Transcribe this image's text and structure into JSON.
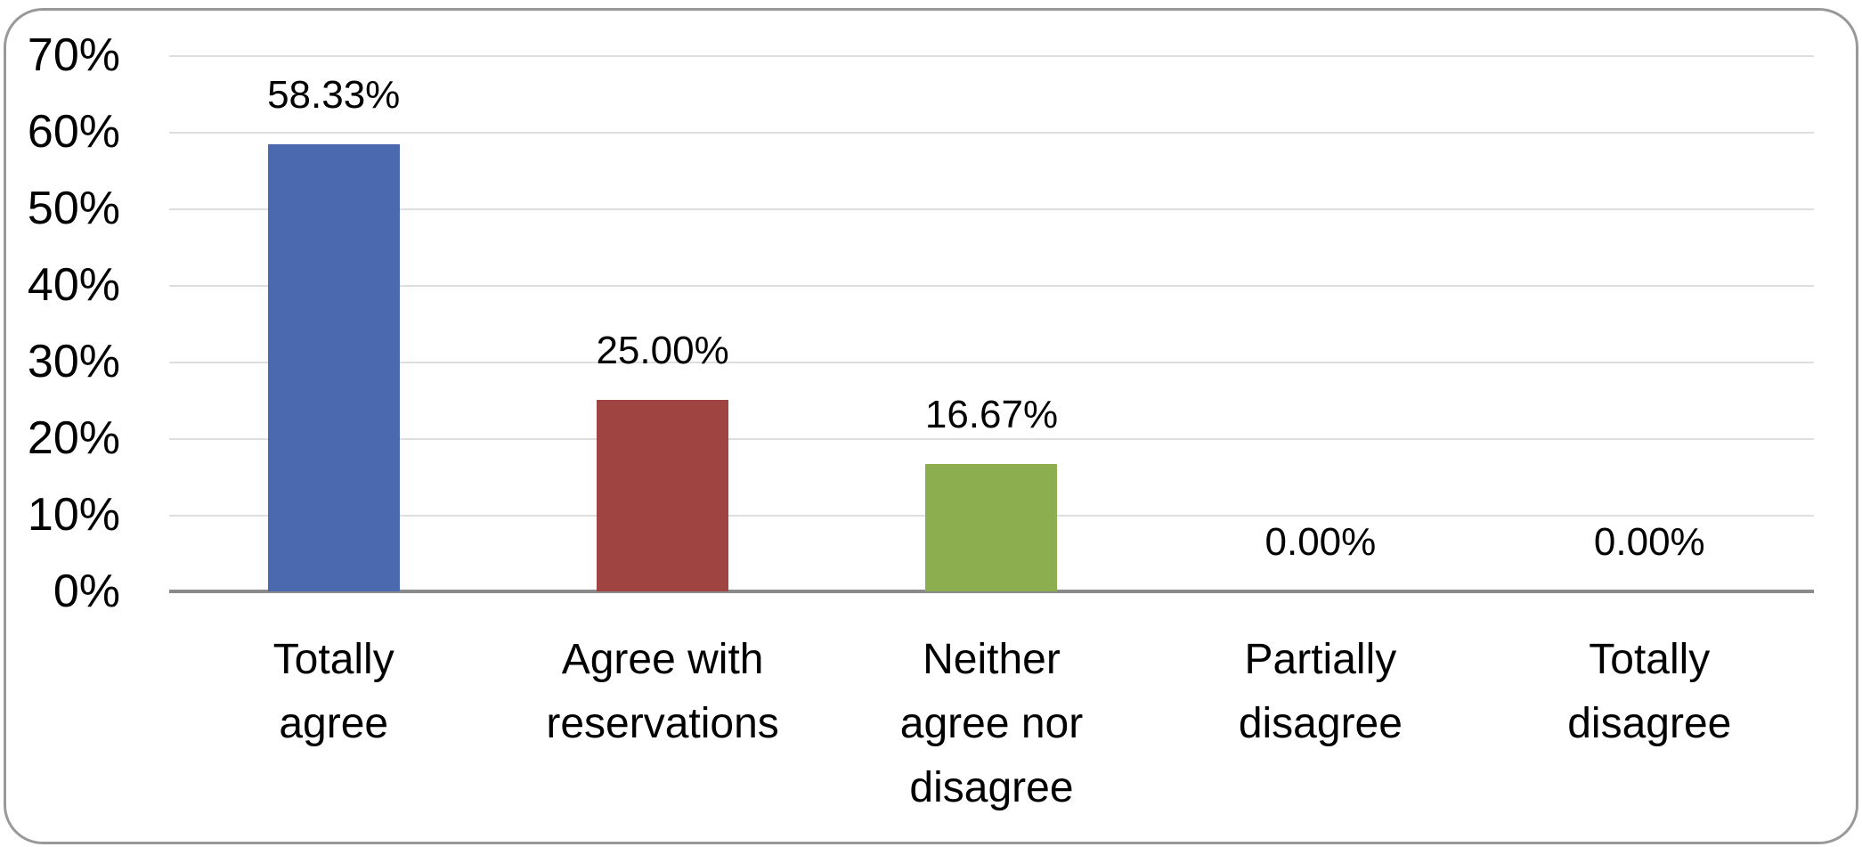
{
  "chart_data": {
    "type": "bar",
    "title": "",
    "xlabel": "",
    "ylabel": "",
    "ylim": [
      0,
      70
    ],
    "grid": true,
    "legend": false,
    "y_tick_labels": [
      "70%",
      "60%",
      "50%",
      "40%",
      "30%",
      "20%",
      "10%",
      "0%"
    ],
    "categories": [
      "Totally agree",
      "Agree with reservations",
      "Neither agree nor disagree",
      "Partially disagree",
      "Totally disagree"
    ],
    "category_label_lines": [
      [
        "Totally",
        "agree"
      ],
      [
        "Agree with",
        "reservations"
      ],
      [
        "Neither",
        "agree nor",
        "disagree"
      ],
      [
        "Partially",
        "disagree"
      ],
      [
        "Totally",
        "disagree"
      ]
    ],
    "values": [
      58.33,
      25.0,
      16.67,
      0.0,
      0.0
    ],
    "data_labels": [
      "58.33%",
      "25.00%",
      "16.67%",
      "0.00%",
      "0.00%"
    ],
    "bar_colors": [
      "#4B69AE",
      "#A04442",
      "#8CAE4F",
      null,
      null
    ],
    "colors": {
      "gridline": "#DEDEDE",
      "axis_line": "#8A8A8A",
      "border": "#999999",
      "text": "#000000",
      "background": "#FFFFFF"
    }
  }
}
